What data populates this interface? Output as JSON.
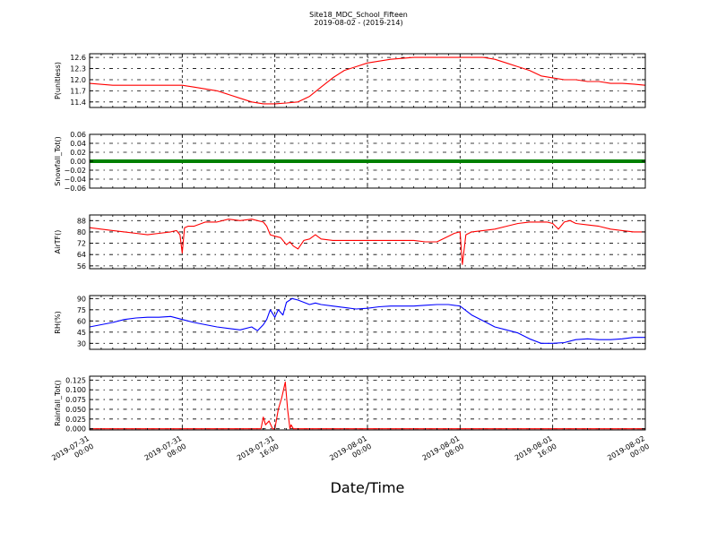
{
  "header": {
    "title": "Site18_MDC_School_Fifteen",
    "subtitle": "2019-08-02 - (2019-214)"
  },
  "xlabel": "Date/Time",
  "x_ticks": [
    [
      "2019-07-31",
      "00:00"
    ],
    [
      "2019-07-31",
      "08:00"
    ],
    [
      "2019-07-31",
      "16:00"
    ],
    [
      "2019-08-01",
      "00:00"
    ],
    [
      "2019-08-01",
      "08:00"
    ],
    [
      "2019-08-01",
      "16:00"
    ],
    [
      "2019-08-02",
      "00:00"
    ]
  ],
  "chart_data": [
    {
      "type": "line",
      "ylabel": "P(unitless)",
      "color": "#ff0000",
      "ylim": [
        11.25,
        12.7
      ],
      "yticks": [
        11.4,
        11.7,
        12.0,
        12.3,
        12.6
      ],
      "ytick_labels": [
        "11.4",
        "11.7",
        "12.0",
        "12.3",
        "12.6"
      ],
      "x_hours": [
        0,
        2,
        4,
        6,
        7,
        8,
        9,
        10,
        11,
        12,
        13,
        14,
        15,
        16,
        17,
        18,
        19,
        20,
        21,
        22,
        23,
        24,
        26,
        28,
        30,
        32,
        33,
        34,
        35,
        36,
        37,
        38,
        39,
        40,
        41,
        42,
        43,
        44,
        45,
        46,
        47,
        48
      ],
      "values": [
        11.9,
        11.85,
        11.85,
        11.85,
        11.85,
        11.85,
        11.8,
        11.75,
        11.7,
        11.6,
        11.5,
        11.4,
        11.35,
        11.35,
        11.37,
        11.4,
        11.55,
        11.8,
        12.05,
        12.25,
        12.35,
        12.45,
        12.55,
        12.6,
        12.6,
        12.6,
        12.6,
        12.6,
        12.55,
        12.45,
        12.35,
        12.25,
        12.1,
        12.05,
        12.0,
        12.0,
        11.95,
        11.95,
        11.9,
        11.9,
        11.88,
        11.85
      ]
    },
    {
      "type": "line",
      "ylabel": "Snowfall_Tot()",
      "color": "#008000",
      "ylim": [
        -0.06,
        0.06
      ],
      "yticks": [
        -0.06,
        -0.04,
        -0.02,
        0.0,
        0.02,
        0.04,
        0.06
      ],
      "ytick_labels": [
        "−0.06",
        "−0.04",
        "−0.02",
        "0.00",
        "0.02",
        "0.04",
        "0.06"
      ],
      "x_hours": [
        0,
        48
      ],
      "values": [
        0,
        0
      ]
    },
    {
      "type": "line",
      "ylabel": "AirTF()",
      "color": "#ff0000",
      "ylim": [
        54,
        92
      ],
      "yticks": [
        56,
        64,
        72,
        80,
        88
      ],
      "ytick_labels": [
        "56",
        "64",
        "72",
        "80",
        "88"
      ],
      "x_hours": [
        0,
        1,
        2,
        3,
        4,
        5,
        6,
        7,
        7.5,
        7.8,
        8.0,
        8.2,
        8.5,
        9,
        10,
        11,
        12,
        13,
        14,
        14.5,
        15,
        15.3,
        15.6,
        16,
        16.5,
        17,
        17.3,
        17.6,
        18,
        18.5,
        19,
        19.5,
        20,
        21,
        22,
        23,
        24,
        25,
        26,
        27,
        28,
        29,
        30,
        31,
        31.5,
        32,
        32.2,
        32.5,
        33,
        34,
        35,
        36,
        37,
        38,
        38.5,
        39,
        39.5,
        40,
        40.5,
        41,
        41.5,
        42,
        43,
        44,
        45,
        46,
        47,
        48
      ],
      "values": [
        83,
        82,
        81,
        80,
        79,
        78,
        79,
        80,
        81,
        78,
        65,
        83,
        84,
        84,
        87,
        87,
        89,
        88,
        89,
        88,
        87,
        84,
        78,
        77,
        76,
        71,
        73,
        70,
        68,
        74,
        75,
        78,
        75,
        74,
        74,
        74,
        74,
        74,
        74,
        74,
        74,
        73,
        73,
        77,
        79,
        80,
        57,
        78,
        80,
        81,
        82,
        84,
        86,
        87,
        87,
        87,
        87,
        86,
        82,
        87,
        88,
        86,
        85,
        84,
        82,
        81,
        80,
        80
      ]
    },
    {
      "type": "line",
      "ylabel": "RH(%)",
      "color": "#0000ff",
      "ylim": [
        22,
        94
      ],
      "yticks": [
        30,
        45,
        60,
        75,
        90
      ],
      "ytick_labels": [
        "30",
        "45",
        "60",
        "75",
        "90"
      ],
      "x_hours": [
        0,
        1,
        2,
        3,
        4,
        5,
        6,
        7,
        8,
        9,
        10,
        11,
        12,
        13,
        14,
        14.5,
        15,
        15.3,
        15.6,
        16,
        16.3,
        16.7,
        17,
        17.5,
        18,
        19,
        19.5,
        20,
        21,
        22,
        23,
        24,
        25,
        26,
        27,
        28,
        29,
        30,
        31,
        32,
        33,
        34,
        35,
        36,
        37,
        38,
        39,
        40,
        41,
        42,
        43,
        44,
        45,
        46,
        47,
        48
      ],
      "values": [
        52,
        55,
        58,
        62,
        64,
        65,
        65,
        66,
        62,
        58,
        55,
        52,
        50,
        48,
        52,
        47,
        55,
        62,
        75,
        65,
        75,
        68,
        85,
        90,
        88,
        82,
        84,
        82,
        80,
        78,
        76,
        77,
        79,
        80,
        80,
        80,
        81,
        82,
        82,
        80,
        68,
        60,
        52,
        48,
        44,
        36,
        30,
        30,
        31,
        35,
        36,
        35,
        35,
        36,
        38,
        38
      ]
    },
    {
      "type": "line",
      "ylabel": "Rainfall_Tot()",
      "color": "#ff0000",
      "ylim": [
        -0.003,
        0.135
      ],
      "yticks": [
        0.0,
        0.025,
        0.05,
        0.075,
        0.1,
        0.125
      ],
      "ytick_labels": [
        "0.000",
        "0.025",
        "0.050",
        "0.075",
        "0.100",
        "0.125"
      ],
      "x_hours": [
        0,
        14.8,
        15.0,
        15.2,
        15.5,
        15.8,
        16.0,
        16.3,
        16.6,
        16.9,
        17.1,
        17.3,
        17.4,
        17.6,
        17.8,
        18.0,
        48
      ],
      "values": [
        0,
        0,
        0.03,
        0.01,
        0.02,
        0.0,
        0.0,
        0.05,
        0.08,
        0.12,
        0.05,
        0.0,
        0.01,
        0.0,
        0.0,
        0.0,
        0
      ]
    }
  ]
}
